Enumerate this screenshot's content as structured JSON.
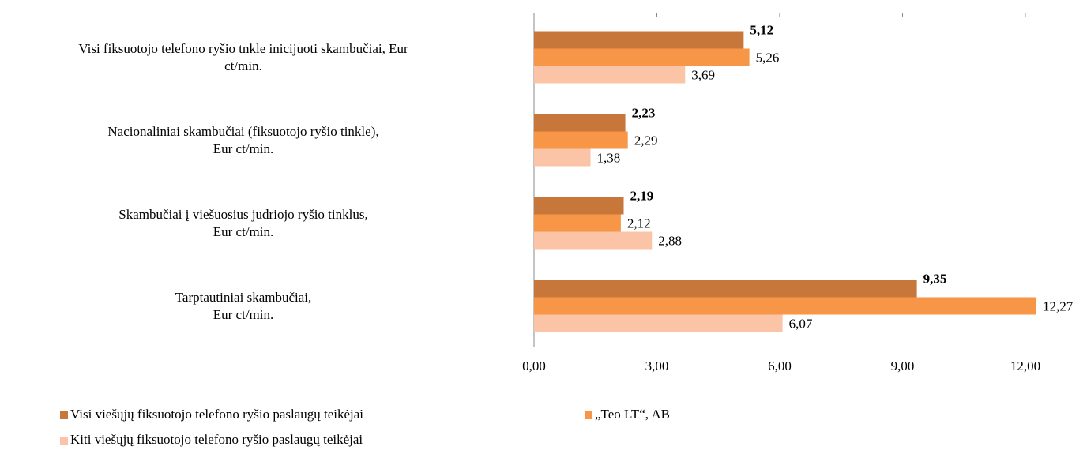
{
  "chart_data": {
    "type": "barh",
    "categories": [
      "Visi fiksuotojo telefono ryšio tnkle inicijuoti skambučiai, Eur\nct/min.",
      "Nacionaliniai skambučiai (fiksuotojo ryšio tinkle),\nEur ct/min.",
      "Skambučiai į viešuosius judriojo ryšio tinklus,\nEur ct/min.",
      "Tarptautiniai skambučiai,\nEur ct/min."
    ],
    "series": [
      {
        "name": "Visi viešųjų fiksuotojo telefono ryšio paslaugų teikėjai",
        "color": "#c8773b",
        "values": [
          5.12,
          2.23,
          2.19,
          9.35
        ],
        "value_labels": [
          "5,12",
          "2,23",
          "2,19",
          "9,35"
        ],
        "bold": true
      },
      {
        "name": "„Teo LT“, AB",
        "color": "#f79646",
        "values": [
          5.26,
          2.29,
          2.12,
          12.27
        ],
        "value_labels": [
          "5,26",
          "2,29",
          "2,12",
          "12,27"
        ]
      },
      {
        "name": "Kiti viešųjų fiksuotojo telefono ryšio paslaugų teikėjai",
        "color": "#fbc4a6",
        "values": [
          3.69,
          1.38,
          2.88,
          6.07
        ],
        "value_labels": [
          "3,69",
          "1,38",
          "2,88",
          "6,07"
        ]
      }
    ],
    "xlim": [
      0,
      12.27
    ],
    "xticks": [
      {
        "value": 0,
        "label": "0,00"
      },
      {
        "value": 3,
        "label": "3,00"
      },
      {
        "value": 6,
        "label": "6,00"
      },
      {
        "value": 9,
        "label": "9,00"
      },
      {
        "value": 12,
        "label": "12,00"
      }
    ],
    "legend": "bottom"
  }
}
